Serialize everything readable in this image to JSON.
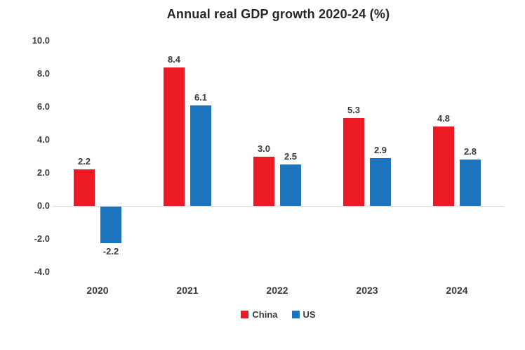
{
  "chart_data": {
    "type": "bar",
    "title": "Annual real GDP growth 2020-24 (%)",
    "categories": [
      "2020",
      "2021",
      "2022",
      "2023",
      "2024"
    ],
    "series": [
      {
        "name": "China",
        "color": "#EC1B23",
        "values": [
          2.2,
          8.4,
          3.0,
          5.3,
          4.8
        ]
      },
      {
        "name": "US",
        "color": "#1B74BC",
        "values": [
          -2.2,
          6.1,
          2.5,
          2.9,
          2.8
        ]
      }
    ],
    "data_labels": [
      "2.2",
      "8.4",
      "3.0",
      "5.3",
      "4.8",
      "-2.2",
      "6.1",
      "2.5",
      "2.9",
      "2.8"
    ],
    "ylim": [
      -4,
      10
    ],
    "ytick_step": 2,
    "ytick_labels": [
      "10.0",
      "8.0",
      "6.0",
      "4.0",
      "2.0",
      "0.0",
      "-2.0",
      "-4.0"
    ],
    "grid": false,
    "legend_position": "bottom",
    "background_color": "#FFFFFF",
    "zero_line_color": "#D9D9D9",
    "text_color": "#3F3F3F",
    "title_color": "#262626"
  }
}
